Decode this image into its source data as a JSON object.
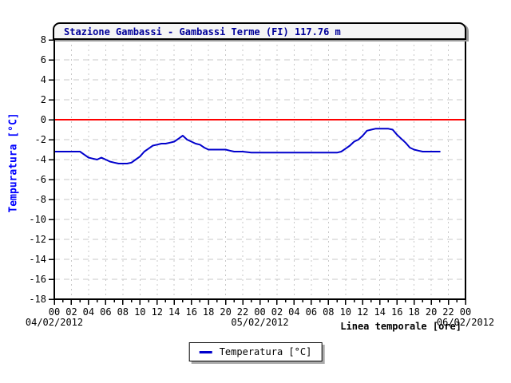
{
  "header": {
    "title": "Stazione Gambassi - Gambassi Terme (FI) 117.76 m"
  },
  "y_axis": {
    "label": "Tempuratura [°C]",
    "tick_labels": [
      "8",
      "6",
      "4",
      "2",
      "0",
      "-2",
      "-4",
      "-6",
      "-8",
      "-10",
      "-12",
      "-14",
      "-16",
      "-18"
    ]
  },
  "x_axis": {
    "label": "Linea temporale [ore]",
    "tick_labels": [
      "00",
      "02",
      "04",
      "06",
      "08",
      "10",
      "12",
      "14",
      "16",
      "18",
      "20",
      "22",
      "00",
      "02",
      "04",
      "06",
      "08",
      "10",
      "12",
      "14",
      "16",
      "18",
      "20",
      "22",
      "00"
    ],
    "date_labels": [
      "04/02/2012",
      "05/02/2012",
      "06/02/2012"
    ]
  },
  "legend": {
    "series_label": "Temperatura [°C]"
  },
  "colors": {
    "line": "#0000cc",
    "zero_line": "#ff0000",
    "grid": "#c8c8c8",
    "title_text": "#000099",
    "y_axis_label_text": "#0000ff",
    "text": "#000000",
    "band_background": "#f5f5f5",
    "plot_background": "#ffffff",
    "border": "#000000"
  },
  "chart_data": {
    "type": "line",
    "title": "Stazione Gambassi - Gambassi Terme (FI) 117.76 m",
    "xlabel": "Linea temporale [ore]",
    "ylabel": "Tempuratura [°C]",
    "ylim": [
      -18,
      8
    ],
    "y_tick_step": 2,
    "x_hours_range": [
      0,
      48
    ],
    "x_tick_step_hours": 2,
    "x_minor_tick_hours": 1,
    "x_dates": [
      "04/02/2012",
      "05/02/2012",
      "06/02/2012"
    ],
    "zero_line_y": 0,
    "grid": true,
    "legend_position": "bottom-center",
    "series": [
      {
        "name": "Temperatura [°C]",
        "color": "#0000cc",
        "x_hours": [
          0,
          1,
          2,
          3,
          3.5,
          4,
          4.5,
          5,
          5.5,
          6,
          6.5,
          7,
          7.5,
          8,
          8.5,
          9,
          9.5,
          10,
          10.5,
          11,
          11.5,
          12,
          12.5,
          13,
          13.5,
          14,
          14.5,
          15,
          15.5,
          16,
          16.5,
          17,
          17.5,
          18,
          18.5,
          19,
          19.5,
          20,
          20.5,
          21,
          22,
          23,
          24,
          25,
          26,
          27,
          28,
          29,
          30,
          31,
          32,
          33,
          33.5,
          34,
          34.5,
          35,
          35.5,
          36,
          36.5,
          37,
          37.5,
          38,
          38.5,
          39,
          39.5,
          40,
          40.5,
          41,
          41.5,
          42,
          42.5,
          43,
          43.5,
          44,
          44.5,
          45
        ],
        "values": [
          -3.2,
          -3.2,
          -3.2,
          -3.2,
          -3.5,
          -3.8,
          -3.9,
          -4.0,
          -3.8,
          -4.0,
          -4.2,
          -4.3,
          -4.4,
          -4.4,
          -4.4,
          -4.3,
          -4.0,
          -3.7,
          -3.2,
          -2.9,
          -2.6,
          -2.5,
          -2.4,
          -2.4,
          -2.3,
          -2.2,
          -1.9,
          -1.6,
          -2.0,
          -2.2,
          -2.4,
          -2.5,
          -2.8,
          -3.0,
          -3.0,
          -3.0,
          -3.0,
          -3.0,
          -3.1,
          -3.2,
          -3.2,
          -3.3,
          -3.3,
          -3.3,
          -3.3,
          -3.3,
          -3.3,
          -3.3,
          -3.3,
          -3.3,
          -3.3,
          -3.3,
          -3.2,
          -2.9,
          -2.6,
          -2.2,
          -2.0,
          -1.6,
          -1.1,
          -1.0,
          -0.9,
          -0.9,
          -0.9,
          -0.9,
          -1.0,
          -1.5,
          -1.9,
          -2.3,
          -2.8,
          -3.0,
          -3.1,
          -3.2,
          -3.2,
          -3.2,
          -3.2,
          -3.2
        ]
      }
    ]
  }
}
